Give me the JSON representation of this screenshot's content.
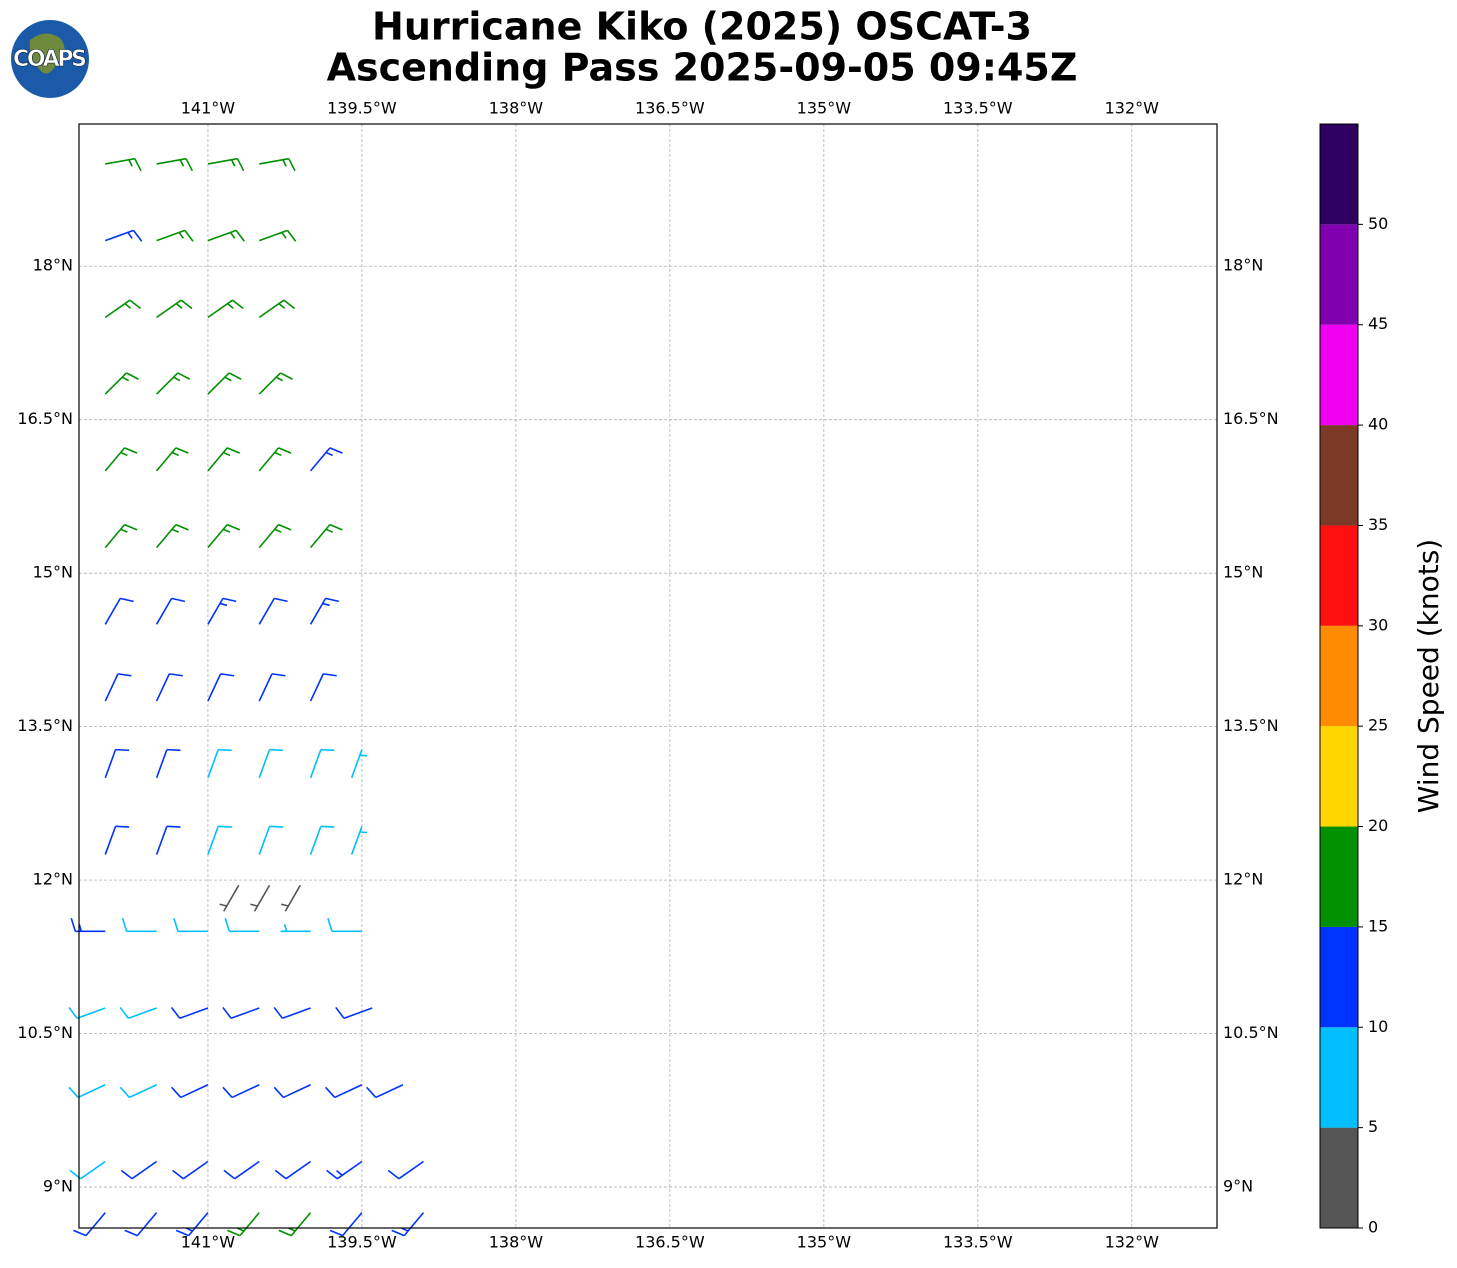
{
  "logo": {
    "text": "COAPS"
  },
  "chart_data": {
    "type": "barbs",
    "title": "Hurricane Kiko (2025) OSCAT-3",
    "subtitle": "Ascending Pass 2025-09-05 09:45Z",
    "xlim": [
      -142.256,
      -131.17
    ],
    "ylim": [
      8.6,
      19.39
    ],
    "xticks": [
      {
        "value": -141,
        "label": "141°W"
      },
      {
        "value": -139.5,
        "label": "139.5°W"
      },
      {
        "value": -138,
        "label": "138°W"
      },
      {
        "value": -136.5,
        "label": "136.5°W"
      },
      {
        "value": -135,
        "label": "135°W"
      },
      {
        "value": -133.5,
        "label": "133.5°W"
      },
      {
        "value": -132,
        "label": "132°W"
      }
    ],
    "yticks": [
      {
        "value": 9,
        "label": "9°N"
      },
      {
        "value": 10.5,
        "label": "10.5°N"
      },
      {
        "value": 12,
        "label": "12°N"
      },
      {
        "value": 13.5,
        "label": "13.5°N"
      },
      {
        "value": 15,
        "label": "15°N"
      },
      {
        "value": 16.5,
        "label": "16.5°N"
      },
      {
        "value": 18,
        "label": "18°N"
      }
    ],
    "grid": true,
    "barbs": [
      [
        -142.0,
        19.0,
        17,
        80
      ],
      [
        -141.5,
        19.0,
        17,
        80
      ],
      [
        -141.0,
        19.0,
        16,
        80
      ],
      [
        -140.5,
        19.0,
        17,
        80
      ],
      [
        -142.0,
        18.25,
        13,
        70
      ],
      [
        -141.5,
        18.25,
        17,
        70
      ],
      [
        -141.0,
        18.25,
        17,
        70
      ],
      [
        -140.5,
        18.25,
        17,
        70
      ],
      [
        -142.0,
        17.5,
        17,
        55
      ],
      [
        -141.5,
        17.5,
        17,
        55
      ],
      [
        -141.0,
        17.5,
        17,
        55
      ],
      [
        -140.5,
        17.5,
        17,
        55
      ],
      [
        -142.0,
        16.75,
        16,
        45
      ],
      [
        -141.5,
        16.75,
        16,
        45
      ],
      [
        -141.0,
        16.75,
        16,
        45
      ],
      [
        -140.5,
        16.75,
        16,
        45
      ],
      [
        -142.0,
        16.0,
        16,
        40
      ],
      [
        -141.5,
        16.0,
        17,
        40
      ],
      [
        -141.0,
        16.0,
        17,
        40
      ],
      [
        -140.5,
        16.0,
        16,
        40
      ],
      [
        -140.0,
        16.0,
        13,
        40
      ],
      [
        -142.0,
        15.25,
        16,
        40
      ],
      [
        -141.5,
        15.25,
        16,
        40
      ],
      [
        -141.0,
        15.25,
        16,
        40
      ],
      [
        -140.5,
        15.25,
        17,
        40
      ],
      [
        -140.0,
        15.25,
        16,
        40
      ],
      [
        -142.0,
        14.5,
        12,
        30
      ],
      [
        -141.5,
        14.5,
        12,
        30
      ],
      [
        -141.0,
        14.5,
        13,
        30
      ],
      [
        -140.5,
        14.5,
        12,
        30
      ],
      [
        -140.0,
        14.5,
        13,
        30
      ],
      [
        -142.0,
        13.75,
        12,
        25
      ],
      [
        -141.5,
        13.75,
        12,
        25
      ],
      [
        -141.0,
        13.75,
        11,
        25
      ],
      [
        -140.5,
        13.75,
        11,
        25
      ],
      [
        -140.0,
        13.75,
        12,
        25
      ],
      [
        -142.0,
        13.0,
        12,
        20
      ],
      [
        -141.5,
        13.0,
        11,
        20
      ],
      [
        -141.0,
        13.0,
        8,
        20
      ],
      [
        -140.5,
        13.0,
        8,
        20
      ],
      [
        -140.0,
        13.0,
        8,
        20
      ],
      [
        -139.6,
        13.0,
        7,
        20
      ],
      [
        -142.0,
        12.25,
        12,
        20
      ],
      [
        -141.5,
        12.25,
        11,
        20
      ],
      [
        -141.0,
        12.25,
        9,
        20
      ],
      [
        -140.5,
        12.25,
        8,
        20
      ],
      [
        -140.0,
        12.25,
        8,
        20
      ],
      [
        -139.6,
        12.25,
        7,
        20
      ],
      [
        -140.7,
        11.95,
        3,
        210
      ],
      [
        -140.4,
        11.95,
        3,
        210
      ],
      [
        -140.1,
        11.95,
        3,
        210
      ],
      [
        -142.0,
        11.5,
        13,
        270
      ],
      [
        -141.5,
        11.5,
        8,
        270
      ],
      [
        -141.0,
        11.5,
        8,
        270
      ],
      [
        -140.5,
        11.5,
        8,
        270
      ],
      [
        -140.0,
        11.5,
        7,
        270
      ],
      [
        -139.5,
        11.5,
        8,
        270
      ],
      [
        -142.0,
        10.75,
        8,
        250
      ],
      [
        -141.5,
        10.75,
        9,
        250
      ],
      [
        -141.0,
        10.75,
        12,
        250
      ],
      [
        -140.5,
        10.75,
        12,
        250
      ],
      [
        -140.0,
        10.75,
        12,
        250
      ],
      [
        -139.4,
        10.75,
        11,
        250
      ],
      [
        -142.0,
        10.0,
        8,
        245
      ],
      [
        -141.5,
        10.0,
        8,
        245
      ],
      [
        -141.0,
        10.0,
        11,
        245
      ],
      [
        -140.5,
        10.0,
        12,
        245
      ],
      [
        -140.0,
        10.0,
        12,
        245
      ],
      [
        -139.5,
        10.0,
        12,
        245
      ],
      [
        -139.1,
        10.0,
        12,
        245
      ],
      [
        -142.0,
        9.25,
        8,
        235
      ],
      [
        -141.5,
        9.25,
        12,
        235
      ],
      [
        -141.0,
        9.25,
        11,
        235
      ],
      [
        -140.5,
        9.25,
        12,
        235
      ],
      [
        -140.0,
        9.25,
        12,
        235
      ],
      [
        -139.5,
        9.25,
        13,
        235
      ],
      [
        -138.9,
        9.25,
        12,
        235
      ],
      [
        -142.0,
        8.75,
        12,
        220
      ],
      [
        -141.5,
        8.75,
        12,
        220
      ],
      [
        -141.0,
        8.75,
        13,
        220
      ],
      [
        -140.5,
        8.75,
        17,
        220
      ],
      [
        -140.0,
        8.75,
        17,
        220
      ],
      [
        -139.5,
        8.75,
        12,
        220
      ],
      [
        -138.9,
        8.75,
        13,
        220
      ]
    ],
    "colorbar": {
      "label": "Wind Speed (knots)",
      "bounds": [
        0,
        5,
        10,
        15,
        20,
        25,
        30,
        35,
        40,
        45,
        50,
        55
      ],
      "colors": [
        "#555555",
        "#00bfff",
        "#0033ff",
        "#009000",
        "#ffd700",
        "#ff8c00",
        "#ff1010",
        "#7b3a28",
        "#f000f0",
        "#8000b0",
        "#2e0060"
      ],
      "ticks": [
        0,
        5,
        10,
        15,
        20,
        25,
        30,
        35,
        40,
        45,
        50
      ]
    }
  }
}
